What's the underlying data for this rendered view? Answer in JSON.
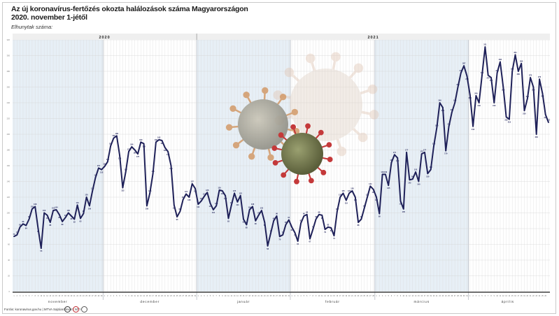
{
  "header": {
    "title_line1": "Az új koronavírus-fertőzés okozta halálozások száma Magyarországon",
    "title_line2": "2020. november 1-jétől",
    "subtitle": "Elhunytak száma:"
  },
  "footer": {
    "source": "Forrás: ​​​​​​​koronavirus.gov.hu | MTVA Sajtóarchívum: MTI"
  },
  "chart_data": {
    "type": "line",
    "title": "Az új koronavírus-fertőzés okozta halálozások száma Magyarországon 2020. november 1-jétől",
    "ylabel": "Elhunytak száma:",
    "ylim": [
      0,
      320
    ],
    "years": [
      {
        "label": "2020",
        "from_day": 0,
        "to_day": 60
      },
      {
        "label": "2021",
        "from_day": 61,
        "to_day": 180
      }
    ],
    "months": [
      {
        "label": "november",
        "start": 0,
        "days": 30,
        "shaded": true
      },
      {
        "label": "december",
        "start": 30,
        "days": 31,
        "shaded": false
      },
      {
        "label": "január",
        "start": 61,
        "days": 31,
        "shaded": true
      },
      {
        "label": "február",
        "start": 92,
        "days": 28,
        "shaded": false
      },
      {
        "label": "március",
        "start": 120,
        "days": 31,
        "shaded": true
      },
      {
        "label": "április",
        "start": 151,
        "days": 26,
        "shaded": false
      }
    ],
    "series": [
      {
        "values": [
          70,
          72,
          82,
          86,
          84,
          92,
          105,
          108,
          80,
          55,
          100,
          97,
          88,
          103,
          104,
          98,
          89,
          94,
          100,
          96,
          92,
          110,
          93,
          99,
          120,
          109,
          128,
          145,
          157,
          155,
          159,
          165,
          185,
          195,
          198,
          173,
          132,
          152,
          178,
          184,
          180,
          175,
          190,
          188,
          109,
          125,
          150,
          190,
          193,
          192,
          183,
          178,
          160,
          110,
          95,
          102,
          117,
          124,
          120,
          137,
          131,
          111,
          115,
          121,
          126,
          112,
          104,
          109,
          129,
          128,
          122,
          93,
          110,
          125,
          114,
          122,
          92,
          85,
          104,
          108,
          90,
          97,
          103,
          88,
          58,
          74,
          90,
          96,
          70,
          72,
          85,
          91,
          82,
          75,
          64,
          87,
          96,
          98,
          67,
          79,
          92,
          98,
          97,
          79,
          82,
          81,
          71,
          102,
          120,
          125,
          116,
          125,
          128,
          120,
          88,
          92,
          106,
          120,
          134,
          130,
          120,
          99,
          149,
          149,
          135,
          164,
          174,
          170,
          115,
          105,
          177,
          142,
          143,
          152,
          140,
          175,
          177,
          150,
          155,
          185,
          208,
          240,
          234,
          179,
          210,
          228,
          240,
          260,
          278,
          287,
          274,
          250,
          210,
          249,
          240,
          275,
          311,
          275,
          272,
          240,
          278,
          292,
          260,
          222,
          219,
          280,
          301,
          280,
          290,
          230,
          245,
          272,
          260,
          200,
          270,
          252,
          225,
          215
        ]
      }
    ]
  }
}
